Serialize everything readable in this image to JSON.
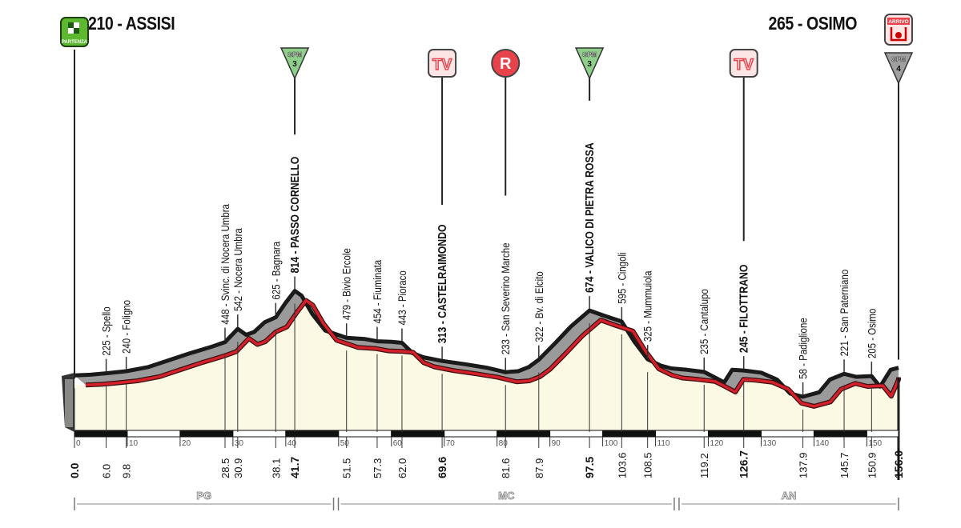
{
  "header": {
    "start_title": "210 - ASSISI",
    "finish_title": "265 - OSIMO"
  },
  "colors": {
    "profile_top": "#1a1a1a",
    "ribbon": "#9a9a9a",
    "road_line": "#d4202a",
    "ground_fill": "#fbf9e4",
    "partenza": "#5cb82e",
    "tv_marker": "#e8434b",
    "gpm3": "#8ed08a",
    "gpm4": "#a0a0a0"
  },
  "markers": [
    {
      "km": 0.0,
      "type": "partenza",
      "label": "PARTENZA",
      "icon": "start-flag-icon"
    },
    {
      "km": 41.7,
      "type": "gpm",
      "label": "GPM",
      "category": "3",
      "icon": "gpm-3-icon"
    },
    {
      "km": 69.6,
      "type": "tv",
      "label": "TV",
      "icon": "tv-icon"
    },
    {
      "km": 81.6,
      "type": "r",
      "label": "R",
      "icon": "refreshment-icon"
    },
    {
      "km": 97.5,
      "type": "gpm",
      "label": "GPM",
      "category": "3",
      "icon": "gpm-3-icon"
    },
    {
      "km": 126.7,
      "type": "tv",
      "label": "TV",
      "icon": "tv-icon"
    },
    {
      "km": 156.0,
      "type": "arrivo",
      "label": "ARRIVO",
      "icon": "finish-icon"
    },
    {
      "km": 156.0,
      "type": "gpm",
      "label": "GPM",
      "category": "4",
      "icon": "gpm-4-icon"
    }
  ],
  "waypoints": [
    {
      "km": "0.0",
      "label": "",
      "elev": 210,
      "bold": true
    },
    {
      "km": "6.0",
      "label": "225 - Spello",
      "elev": 225
    },
    {
      "km": "9.8",
      "label": "240 - Foligno",
      "elev": 240
    },
    {
      "km": "28.5",
      "label": "448 - Svinc. di Nocera Umbra",
      "elev": 448
    },
    {
      "km": "30.9",
      "label": "542 - Nocera Umbra",
      "elev": 542
    },
    {
      "km": "38.1",
      "label": "625 - Bagnara",
      "elev": 625
    },
    {
      "km": "41.7",
      "label": "814 - PASSO CORNELLO",
      "elev": 814,
      "bold": true
    },
    {
      "km": "51.5",
      "label": "479 - Bivio Ercole",
      "elev": 479
    },
    {
      "km": "57.3",
      "label": "454 - Fiuminata",
      "elev": 454
    },
    {
      "km": "62.0",
      "label": "443 - Pioraco",
      "elev": 443
    },
    {
      "km": "69.6",
      "label": "313 - CASTELRAIMONDO",
      "elev": 313,
      "bold": true
    },
    {
      "km": "81.6",
      "label": "233 - San Severino Marche",
      "elev": 233
    },
    {
      "km": "87.9",
      "label": "322 - Bv. di Elcito",
      "elev": 322
    },
    {
      "km": "97.5",
      "label": "674 - VALICO DI PIETRA ROSSA",
      "elev": 674,
      "bold": true
    },
    {
      "km": "103.6",
      "label": "595 - Cingoli",
      "elev": 595
    },
    {
      "km": "108.5",
      "label": "325 - Mummuiola",
      "elev": 325
    },
    {
      "km": "119.2",
      "label": "235 - Cantalupo",
      "elev": 235
    },
    {
      "km": "126.7",
      "label": "245 - FILOTTRANO",
      "elev": 245,
      "bold": true
    },
    {
      "km": "137.9",
      "label": "58 - Padiglione",
      "elev": 58
    },
    {
      "km": "145.7",
      "label": "221 - San Paterniano",
      "elev": 221
    },
    {
      "km": "150.9",
      "label": "205 - Osimo",
      "elev": 205
    },
    {
      "km": "156.0",
      "label": "",
      "elev": 265,
      "bold": true
    }
  ],
  "axis": {
    "ticks": [
      "0",
      "10",
      "20",
      "30",
      "40",
      "50",
      "60",
      "70",
      "80",
      "90",
      "100",
      "110",
      "120",
      "130",
      "140",
      "150"
    ]
  },
  "provinces": [
    {
      "label": "PG",
      "from": 0,
      "to": 49.5
    },
    {
      "label": "MC",
      "from": 49.5,
      "to": 114
    },
    {
      "label": "AN",
      "from": 114,
      "to": 156
    }
  ],
  "chart_data": {
    "type": "area",
    "xlabel": "",
    "ylabel": "",
    "xlim": [
      0,
      156
    ],
    "grid": false,
    "profile": [
      [
        0,
        210
      ],
      [
        3,
        215
      ],
      [
        6,
        225
      ],
      [
        9.8,
        240
      ],
      [
        14,
        270
      ],
      [
        18,
        320
      ],
      [
        22,
        370
      ],
      [
        26,
        415
      ],
      [
        28.5,
        448
      ],
      [
        30.9,
        542
      ],
      [
        32.5,
        500
      ],
      [
        34,
        520
      ],
      [
        36,
        590
      ],
      [
        38.1,
        625
      ],
      [
        40,
        730
      ],
      [
        41.7,
        814
      ],
      [
        43,
        780
      ],
      [
        45,
        650
      ],
      [
        47.5,
        530
      ],
      [
        51.5,
        479
      ],
      [
        55,
        470
      ],
      [
        57.3,
        454
      ],
      [
        60,
        450
      ],
      [
        62,
        443
      ],
      [
        64,
        370
      ],
      [
        66,
        340
      ],
      [
        69.6,
        313
      ],
      [
        74,
        290
      ],
      [
        78,
        265
      ],
      [
        81.6,
        233
      ],
      [
        84,
        240
      ],
      [
        86,
        270
      ],
      [
        87.9,
        322
      ],
      [
        91,
        440
      ],
      [
        94,
        560
      ],
      [
        97.5,
        674
      ],
      [
        100,
        640
      ],
      [
        103.6,
        595
      ],
      [
        106,
        450
      ],
      [
        108.5,
        325
      ],
      [
        111,
        280
      ],
      [
        113,
        260
      ],
      [
        116,
        250
      ],
      [
        119.2,
        235
      ],
      [
        121,
        200
      ],
      [
        123,
        160
      ],
      [
        124.5,
        250
      ],
      [
        126.7,
        245
      ],
      [
        130,
        230
      ],
      [
        133,
        180
      ],
      [
        135.5,
        80
      ],
      [
        137.9,
        58
      ],
      [
        141,
        90
      ],
      [
        143,
        180
      ],
      [
        145.7,
        221
      ],
      [
        148,
        200
      ],
      [
        150.9,
        205
      ],
      [
        152.5,
        130
      ],
      [
        154.5,
        250
      ],
      [
        156,
        265
      ]
    ]
  }
}
